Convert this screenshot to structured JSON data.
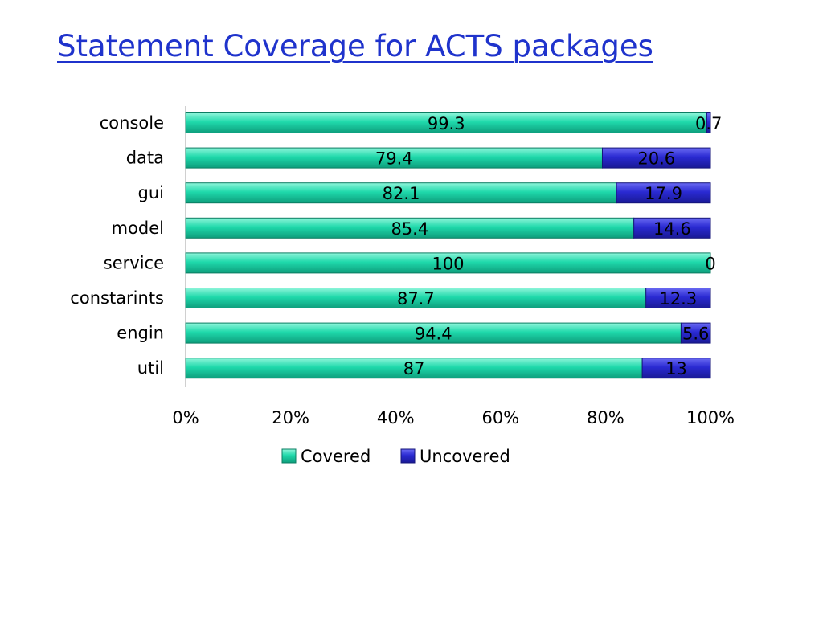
{
  "slide": {
    "title": "Statement Coverage for ACTS packages"
  },
  "chart_data": {
    "type": "bar",
    "orientation": "horizontal",
    "stacked": "percent",
    "categories": [
      "console",
      "data",
      "gui",
      "model",
      "service",
      "constarints",
      "engin",
      "util"
    ],
    "series": [
      {
        "name": "Covered",
        "values": [
          99.3,
          79.4,
          82.1,
          85.4,
          100,
          87.7,
          94.4,
          87
        ],
        "color": "#19d6a8"
      },
      {
        "name": "Uncovered",
        "values": [
          0.7,
          20.6,
          17.9,
          14.6,
          0,
          12.3,
          5.6,
          13
        ],
        "color": "#2b2bd0"
      }
    ],
    "data_labels": [
      [
        "99.3",
        "79.4",
        "82.1",
        "85.4",
        "100",
        "87.7",
        "94.4",
        "87"
      ],
      [
        "0.7",
        "20.6",
        "17.9",
        "14.6",
        "0",
        "12.3",
        "5.6",
        "13"
      ]
    ],
    "x_ticks": [
      "0%",
      "20%",
      "40%",
      "60%",
      "80%",
      "100%"
    ],
    "xlim": [
      0,
      100
    ],
    "xlabel": "",
    "ylabel": "",
    "legend": {
      "position": "bottom",
      "entries": [
        "Covered",
        "Uncovered"
      ]
    },
    "grid": false
  }
}
